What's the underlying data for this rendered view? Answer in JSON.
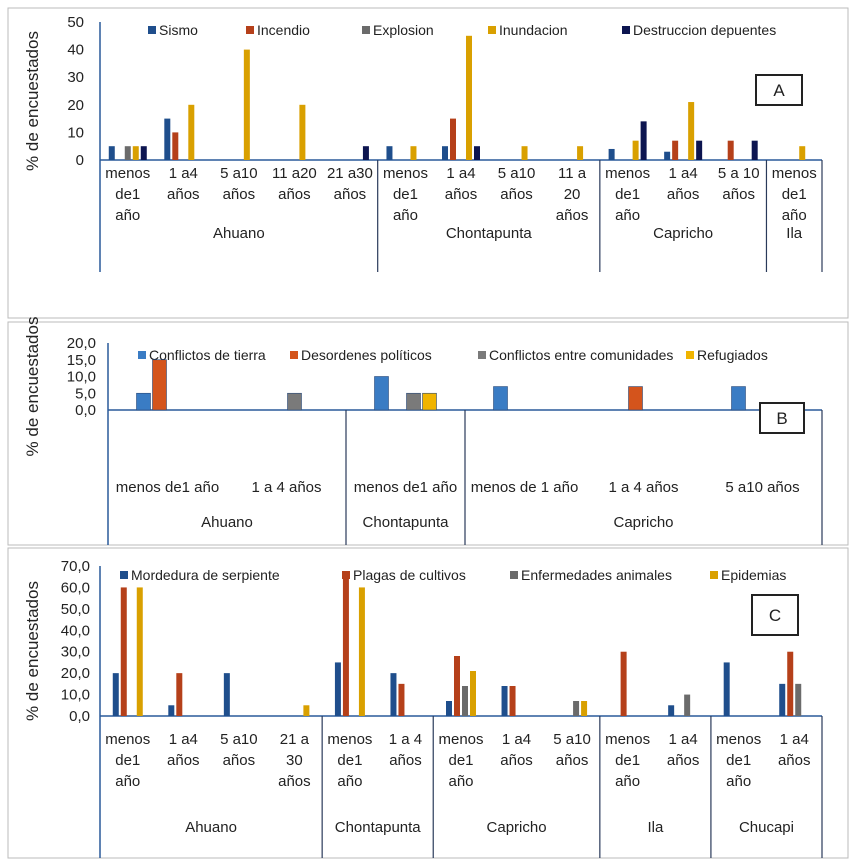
{
  "chart_data": [
    {
      "id": "A",
      "type": "bar",
      "panel_label": "A",
      "ylabel": "% de encuestados",
      "ylim": [
        0,
        50
      ],
      "yticks": [
        0,
        10,
        20,
        30,
        40,
        50
      ],
      "tick_decimals": 0,
      "series": [
        {
          "name": "Sismo",
          "color": "#1f4e8c"
        },
        {
          "name": "Incendio",
          "color": "#b5401a"
        },
        {
          "name": "Explosion",
          "color": "#6b6b6b"
        },
        {
          "name": "Inundacion",
          "color": "#d9a000"
        },
        {
          "name": "Destruccion depuentes",
          "color": "#0d1550"
        }
      ],
      "groups": [
        {
          "name": "Ahuano",
          "categories": [
            {
              "label": "menos de1 año",
              "values": [
                5,
                0,
                5,
                5,
                5
              ]
            },
            {
              "label": "1 a4 años",
              "values": [
                15,
                10,
                0,
                20,
                0
              ]
            },
            {
              "label": "5 a10 años",
              "values": [
                0,
                0,
                0,
                40,
                0
              ]
            },
            {
              "label": "11 a20 años",
              "values": [
                0,
                0,
                0,
                20,
                0
              ]
            },
            {
              "label": "21 a30 años",
              "values": [
                0,
                0,
                0,
                0,
                5
              ]
            }
          ]
        },
        {
          "name": "Chontapunta",
          "categories": [
            {
              "label": "menos de1 año",
              "values": [
                5,
                0,
                0,
                5,
                0
              ]
            },
            {
              "label": "1 a4 años",
              "values": [
                5,
                15,
                0,
                45,
                5
              ]
            },
            {
              "label": "5 a10 años",
              "values": [
                0,
                0,
                0,
                5,
                0
              ]
            },
            {
              "label": "11 a 20 años",
              "values": [
                0,
                0,
                0,
                5,
                0
              ]
            }
          ]
        },
        {
          "name": "Capricho",
          "categories": [
            {
              "label": "menos de1 año",
              "values": [
                4,
                0,
                0,
                7,
                14
              ]
            },
            {
              "label": "1 a4 años",
              "values": [
                3,
                7,
                0,
                21,
                7
              ]
            },
            {
              "label": "5 a 10 años",
              "values": [
                0,
                7,
                0,
                0,
                7
              ]
            }
          ]
        },
        {
          "name": "Ila",
          "categories": [
            {
              "label": "menos de1 año",
              "values": [
                0,
                0,
                0,
                5,
                0
              ]
            }
          ]
        }
      ]
    },
    {
      "id": "B",
      "type": "bar",
      "panel_label": "B",
      "ylabel": "% de encuestados",
      "ylim": [
        0,
        20
      ],
      "yticks": [
        0,
        5,
        10,
        15,
        20
      ],
      "tick_decimals": 1,
      "series": [
        {
          "name": "Conflictos de tierra",
          "color": "#3a7cc4"
        },
        {
          "name": "Desordenes políticos",
          "color": "#d4541c"
        },
        {
          "name": "Conflictos entre comunidades",
          "color": "#7a7a7a"
        },
        {
          "name": "Refugiados",
          "color": "#f0b400"
        }
      ],
      "groups": [
        {
          "name": "Ahuano",
          "categories": [
            {
              "label": "menos de1 año",
              "values": [
                5,
                15,
                0,
                0
              ]
            },
            {
              "label": "1 a 4 años",
              "values": [
                0,
                0,
                5,
                0
              ]
            }
          ]
        },
        {
          "name": "Chontapunta",
          "categories": [
            {
              "label": "menos de1 año",
              "values": [
                10,
                0,
                5,
                5
              ]
            }
          ]
        },
        {
          "name": "Capricho",
          "categories": [
            {
              "label": "menos de 1 año",
              "values": [
                7,
                0,
                0,
                0
              ]
            },
            {
              "label": "1 a 4 años",
              "values": [
                0,
                7,
                0,
                0
              ]
            },
            {
              "label": "5 a10 años",
              "values": [
                7,
                0,
                0,
                0
              ]
            }
          ]
        }
      ]
    },
    {
      "id": "C",
      "type": "bar",
      "panel_label": "C",
      "ylabel": "% de encuestados",
      "ylim": [
        0,
        70
      ],
      "yticks": [
        0,
        10,
        20,
        30,
        40,
        50,
        60,
        70
      ],
      "tick_decimals": 1,
      "series": [
        {
          "name": "Mordedura de serpiente",
          "color": "#1f4e8c"
        },
        {
          "name": "Plagas de cultivos",
          "color": "#b5401a"
        },
        {
          "name": "Enfermedades animales",
          "color": "#6b6b6b"
        },
        {
          "name": "Epidemias",
          "color": "#d9a000"
        }
      ],
      "groups": [
        {
          "name": "Ahuano",
          "categories": [
            {
              "label": "menos de1 año",
              "values": [
                20,
                60,
                0,
                60
              ]
            },
            {
              "label": "1 a4 años",
              "values": [
                5,
                20,
                0,
                0
              ]
            },
            {
              "label": "5 a10 años",
              "values": [
                20,
                0,
                0,
                0
              ]
            },
            {
              "label": "21 a 30 años",
              "values": [
                0,
                0,
                0,
                5
              ]
            }
          ]
        },
        {
          "name": "Chontapunta",
          "categories": [
            {
              "label": "menos de1 año",
              "values": [
                25,
                67,
                0,
                60
              ]
            },
            {
              "label": "1 a 4 años",
              "values": [
                20,
                15,
                0,
                0
              ]
            }
          ]
        },
        {
          "name": "Capricho",
          "categories": [
            {
              "label": "menos de1 año",
              "values": [
                7,
                28,
                14,
                21
              ]
            },
            {
              "label": "1 a4 años",
              "values": [
                14,
                14,
                0,
                0
              ]
            },
            {
              "label": "5 a10 años",
              "values": [
                0,
                0,
                7,
                7
              ]
            }
          ]
        },
        {
          "name": "Ila",
          "categories": [
            {
              "label": "menos de1 año",
              "values": [
                0,
                30,
                0,
                0
              ]
            },
            {
              "label": "1 a4 años",
              "values": [
                5,
                0,
                10,
                0
              ]
            }
          ]
        },
        {
          "name": "Chucapi",
          "categories": [
            {
              "label": "menos de1 año",
              "values": [
                25,
                0,
                0,
                0
              ]
            },
            {
              "label": "1 a4 años",
              "values": [
                15,
                30,
                15,
                0
              ]
            }
          ]
        }
      ]
    }
  ]
}
